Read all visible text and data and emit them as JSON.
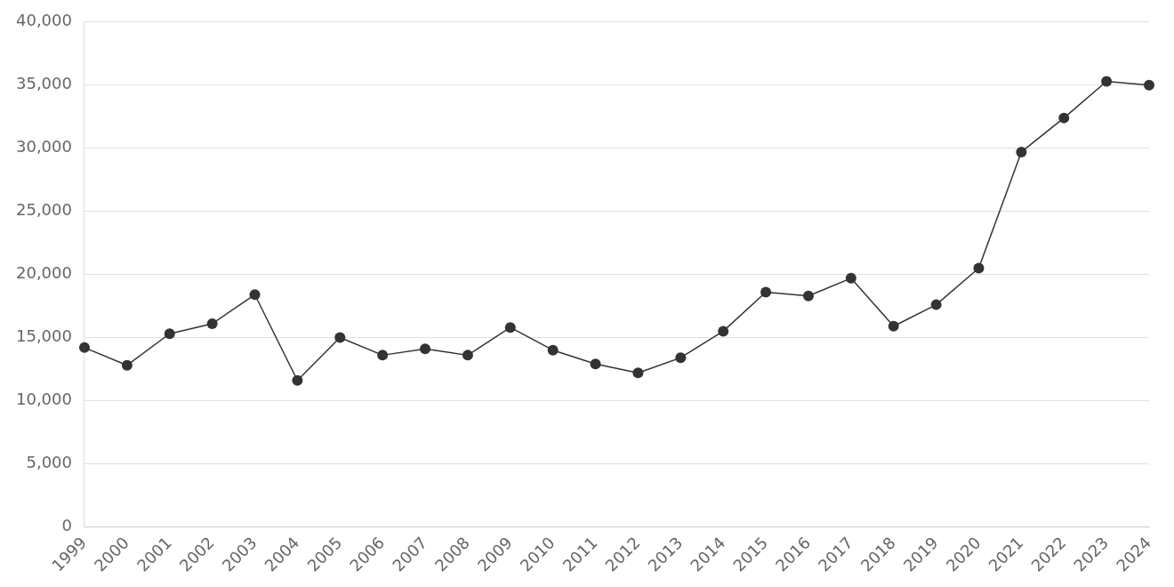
{
  "chart_data": {
    "type": "line",
    "categories": [
      "1999",
      "2000",
      "2001",
      "2002",
      "2003",
      "2004",
      "2005",
      "2006",
      "2007",
      "2008",
      "2009",
      "2010",
      "2011",
      "2012",
      "2013",
      "2014",
      "2015",
      "2016",
      "2017",
      "2018",
      "2019",
      "2020",
      "2021",
      "2022",
      "2023",
      "2024"
    ],
    "series": [
      {
        "color": "#333333",
        "values": [
          14200,
          12800,
          15300,
          16100,
          18400,
          11600,
          15000,
          13600,
          14100,
          13600,
          15800,
          14000,
          12900,
          12200,
          13400,
          15500,
          18600,
          18300,
          19700,
          15900,
          17600,
          20500,
          29700,
          32400,
          35300,
          35000
        ]
      }
    ],
    "ylim": [
      0,
      40000
    ],
    "yticks": [
      0,
      {
        "value": 5000,
        "label": "5,000"
      },
      {
        "value": 10000,
        "label": "10,000"
      },
      {
        "value": 15000,
        "label": "15,000"
      },
      {
        "value": 20000,
        "label": "20,000"
      },
      {
        "value": 25000,
        "label": "25,000"
      },
      {
        "value": 30000,
        "label": "30,000"
      },
      {
        "value": 35000,
        "label": "35,000"
      },
      {
        "value": 40000,
        "label": "40,000"
      }
    ],
    "grid": "y",
    "legend": false,
    "marker": "circle",
    "line_style": "solid"
  }
}
